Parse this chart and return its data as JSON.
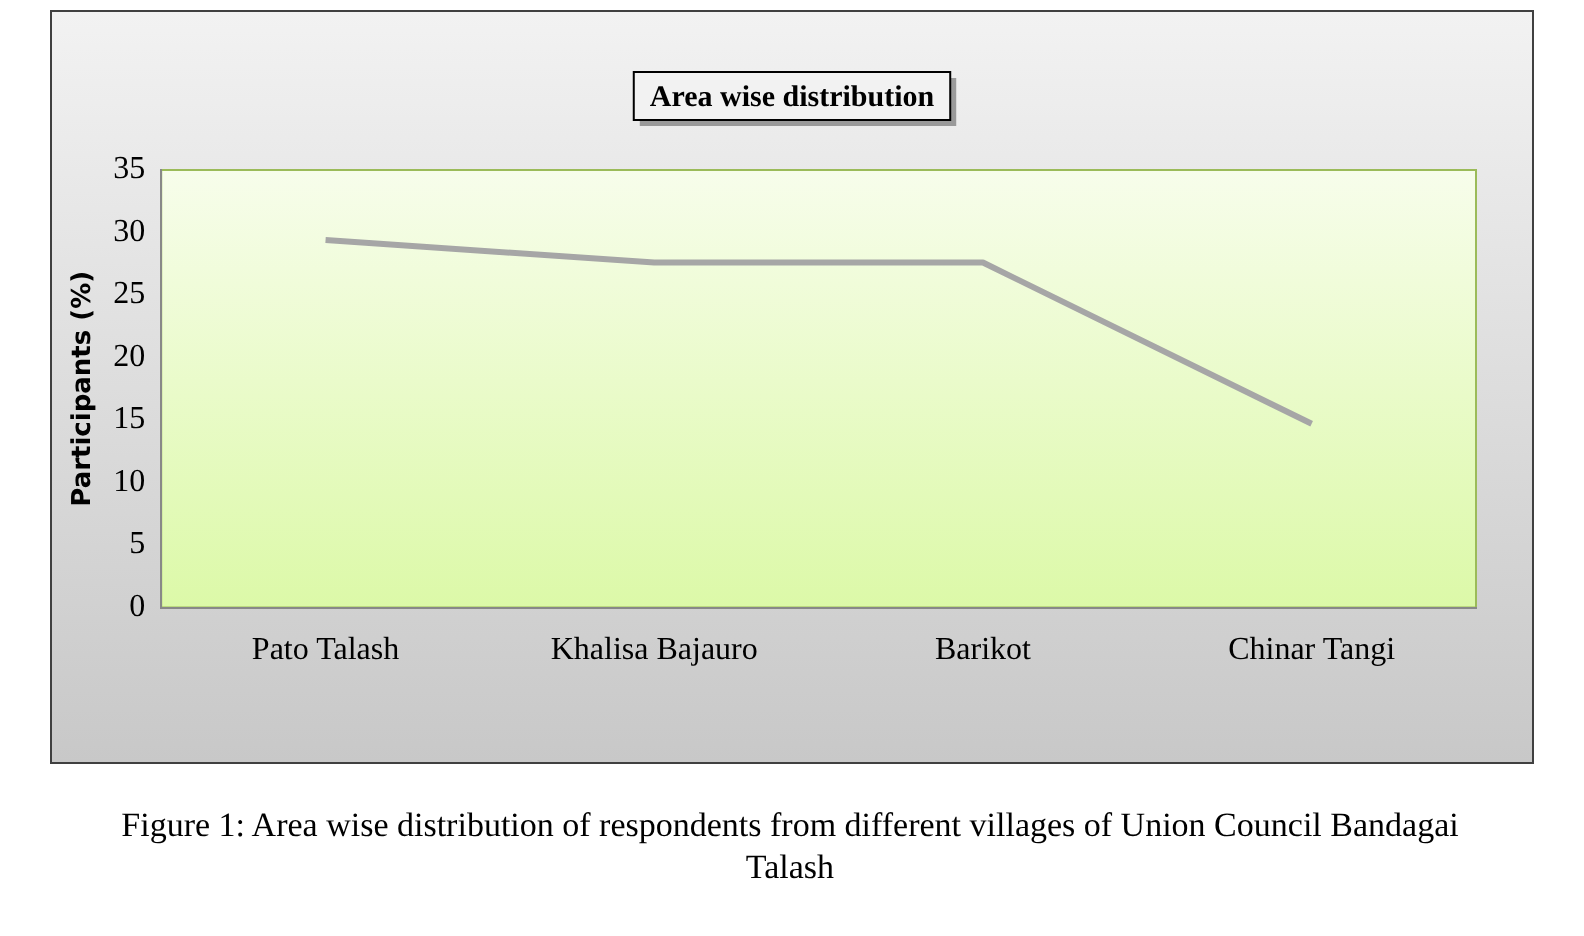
{
  "chart_data": {
    "type": "line",
    "title": "Area wise distribution",
    "ylabel": "Participants (%)",
    "categories": [
      "Pato Talash",
      "Khalisa Bajauro",
      "Barikot",
      "Chinar Tangi"
    ],
    "series": [
      {
        "color": "#a6a6a6",
        "values": [
          29.4,
          27.6,
          27.6,
          14.7
        ]
      }
    ],
    "ylim": [
      0,
      35
    ],
    "yticks": [
      0,
      5,
      10,
      15,
      20,
      25,
      30,
      35
    ],
    "grid": false,
    "legend": false,
    "marker": "none",
    "line_style": "solid",
    "annotations": [
      "Figure 1: Area wise distribution of respondents from different villages of Union Council Bandagai  Talash"
    ]
  }
}
